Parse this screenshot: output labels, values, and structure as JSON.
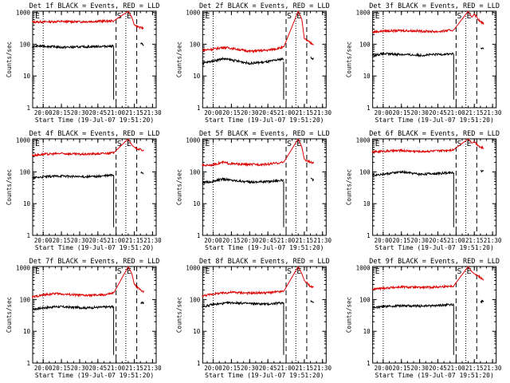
{
  "figure": {
    "colors": {
      "events": "#000000",
      "lld": "#dd0000",
      "axes": "#000000",
      "background": "#ffffff"
    }
  },
  "chart_data": [
    {
      "type": "line",
      "title": "Det 1f BLACK = Events, RED = LLD",
      "xlabel": "Start Time (19-Jul-07 19:51:20)",
      "ylabel": "Counts/sec",
      "xticks": [
        "20:00",
        "20:15",
        "20:30",
        "20:45",
        "21:00",
        "21:15",
        "21:30"
      ],
      "yticks": [
        "1",
        "10",
        "100",
        "1000"
      ],
      "yscale": "log",
      "ylim": [
        1,
        1100
      ],
      "xlim": [
        "19:51:20",
        "21:33:00"
      ],
      "annotations": [
        "E",
        "S",
        "E"
      ],
      "series": [
        {
          "color": "red",
          "x": [
            "19:51",
            "20:00",
            "20:15",
            "20:30",
            "20:45",
            "20:58",
            "21:10",
            "21:13",
            "21:15",
            "21:20",
            "21:23"
          ],
          "y": [
            500,
            510,
            520,
            510,
            530,
            540,
            1100,
            700,
            400,
            330,
            320
          ]
        },
        {
          "color": "black",
          "x": [
            "19:51",
            "20:00",
            "20:15",
            "20:30",
            "20:45",
            "20:58",
            "21:20",
            "21:23"
          ],
          "y": [
            85,
            88,
            80,
            82,
            85,
            88,
            105,
            95
          ]
        }
      ]
    },
    {
      "type": "line",
      "title": "Det 2f BLACK = Events, RED = LLD",
      "xlabel": "Start Time (19-Jul-07 19:51:20)",
      "ylabel": "Counts/sec",
      "xticks": [
        "20:00",
        "20:15",
        "20:30",
        "20:45",
        "21:00",
        "21:15",
        "21:30"
      ],
      "yticks": [
        "1",
        "10",
        "100",
        "1000"
      ],
      "yscale": "log",
      "ylim": [
        1,
        1100
      ],
      "xlim": [
        "19:51:20",
        "21:33:00"
      ],
      "annotations": [
        "E",
        "S",
        "E"
      ],
      "series": [
        {
          "color": "red",
          "x": [
            "19:51",
            "20:00",
            "20:08",
            "20:15",
            "20:30",
            "20:45",
            "20:58",
            "21:10",
            "21:13",
            "21:15",
            "21:20",
            "21:23"
          ],
          "y": [
            65,
            70,
            80,
            75,
            60,
            65,
            80,
            1100,
            600,
            150,
            110,
            100
          ]
        },
        {
          "color": "black",
          "x": [
            "19:51",
            "20:00",
            "20:08",
            "20:15",
            "20:30",
            "20:45",
            "20:58",
            "21:20",
            "21:23"
          ],
          "y": [
            25,
            30,
            35,
            32,
            25,
            28,
            35,
            38,
            35
          ]
        }
      ]
    },
    {
      "type": "line",
      "title": "Det 3f BLACK = Events, RED = LLD",
      "xlabel": "Start Time (19-Jul-07 19:51:20)",
      "ylabel": "Counts/sec",
      "xticks": [
        "20:00",
        "20:15",
        "20:30",
        "20:45",
        "21:00",
        "21:15",
        "21:30"
      ],
      "yticks": [
        "1",
        "10",
        "100",
        "1000"
      ],
      "yscale": "log",
      "ylim": [
        1,
        1100
      ],
      "xlim": [
        "19:51:20",
        "21:33:00"
      ],
      "annotations": [
        "E",
        "S",
        "E"
      ],
      "series": [
        {
          "color": "red",
          "x": [
            "19:51",
            "20:00",
            "20:15",
            "20:30",
            "20:45",
            "20:58",
            "21:10",
            "21:13",
            "21:15",
            "21:20",
            "21:23"
          ],
          "y": [
            240,
            260,
            270,
            260,
            250,
            280,
            1100,
            700,
            900,
            500,
            450
          ]
        },
        {
          "color": "black",
          "x": [
            "19:51",
            "20:00",
            "20:15",
            "20:30",
            "20:45",
            "20:58",
            "21:20",
            "21:23"
          ],
          "y": [
            45,
            50,
            48,
            45,
            48,
            50,
            75,
            70
          ]
        }
      ]
    },
    {
      "type": "line",
      "title": "Det 4f BLACK = Events, RED = LLD",
      "xlabel": "Start Time (19-Jul-07 19:51:20)",
      "ylabel": "Counts/sec",
      "xticks": [
        "20:00",
        "20:15",
        "20:30",
        "20:45",
        "21:00",
        "21:15",
        "21:30"
      ],
      "yticks": [
        "1",
        "10",
        "100",
        "1000"
      ],
      "yscale": "log",
      "ylim": [
        1,
        1100
      ],
      "xlim": [
        "19:51:20",
        "21:33:00"
      ],
      "annotations": [
        "E",
        "S",
        "E"
      ],
      "series": [
        {
          "color": "red",
          "x": [
            "19:51",
            "20:00",
            "20:15",
            "20:30",
            "20:45",
            "20:58",
            "21:10",
            "21:13",
            "21:15",
            "21:20",
            "21:23"
          ],
          "y": [
            330,
            360,
            380,
            360,
            370,
            400,
            1100,
            700,
            600,
            500,
            480
          ]
        },
        {
          "color": "black",
          "x": [
            "19:51",
            "20:00",
            "20:15",
            "20:30",
            "20:45",
            "20:58",
            "21:20",
            "21:23"
          ],
          "y": [
            65,
            70,
            75,
            70,
            72,
            80,
            100,
            90
          ]
        }
      ]
    },
    {
      "type": "line",
      "title": "Det 5f BLACK = Events, RED = LLD",
      "xlabel": "Start Time (19-Jul-07 19:51:20)",
      "ylabel": "Counts/sec",
      "xticks": [
        "20:00",
        "20:15",
        "20:30",
        "20:45",
        "21:00",
        "21:15",
        "21:30"
      ],
      "yticks": [
        "1",
        "10",
        "100",
        "1000"
      ],
      "yscale": "log",
      "ylim": [
        1,
        1100
      ],
      "xlim": [
        "19:51:20",
        "21:33:00"
      ],
      "annotations": [
        "E",
        "S",
        "E"
      ],
      "series": [
        {
          "color": "red",
          "x": [
            "19:51",
            "20:00",
            "20:08",
            "20:15",
            "20:30",
            "20:45",
            "20:58",
            "21:10",
            "21:13",
            "21:15",
            "21:20",
            "21:23"
          ],
          "y": [
            160,
            170,
            200,
            180,
            170,
            175,
            200,
            1100,
            600,
            250,
            200,
            190
          ]
        },
        {
          "color": "black",
          "x": [
            "19:51",
            "20:00",
            "20:08",
            "20:15",
            "20:30",
            "20:45",
            "20:58",
            "21:20",
            "21:23"
          ],
          "y": [
            45,
            50,
            60,
            55,
            48,
            50,
            55,
            60,
            55
          ]
        }
      ]
    },
    {
      "type": "line",
      "title": "Det 6f BLACK = Events, RED = LLD",
      "xlabel": "Start Time (19-Jul-07 19:51:20)",
      "ylabel": "Counts/sec",
      "xticks": [
        "20:00",
        "20:15",
        "20:30",
        "20:45",
        "21:00",
        "21:15",
        "21:30"
      ],
      "yticks": [
        "1",
        "10",
        "100",
        "1000"
      ],
      "yscale": "log",
      "ylim": [
        1,
        1100
      ],
      "xlim": [
        "19:51:20",
        "21:33:00"
      ],
      "annotations": [
        "E",
        "S",
        "E"
      ],
      "series": [
        {
          "color": "red",
          "x": [
            "19:51",
            "20:00",
            "20:15",
            "20:30",
            "20:45",
            "20:58",
            "21:10",
            "21:13",
            "21:15",
            "21:20",
            "21:23"
          ],
          "y": [
            420,
            450,
            470,
            440,
            460,
            500,
            1100,
            800,
            900,
            600,
            560
          ]
        },
        {
          "color": "black",
          "x": [
            "19:51",
            "20:00",
            "20:15",
            "20:30",
            "20:45",
            "20:58",
            "21:20",
            "21:23"
          ],
          "y": [
            80,
            85,
            100,
            85,
            90,
            95,
            110,
            105
          ]
        }
      ]
    },
    {
      "type": "line",
      "title": "Det 7f BLACK = Events, RED = LLD",
      "xlabel": "Start Time (19-Jul-07 19:51:20)",
      "ylabel": "Counts/sec",
      "xticks": [
        "20:00",
        "20:15",
        "20:30",
        "20:45",
        "21:00",
        "21:15",
        "21:30"
      ],
      "yticks": [
        "1",
        "10",
        "100",
        "1000"
      ],
      "yscale": "log",
      "ylim": [
        1,
        1100
      ],
      "xlim": [
        "19:51:20",
        "21:33:00"
      ],
      "annotations": [
        "E",
        "S",
        "E"
      ],
      "series": [
        {
          "color": "red",
          "x": [
            "19:51",
            "20:00",
            "20:10",
            "20:20",
            "20:35",
            "20:50",
            "20:58",
            "21:10",
            "21:13",
            "21:15",
            "21:20",
            "21:23"
          ],
          "y": [
            120,
            140,
            155,
            145,
            135,
            140,
            160,
            1100,
            650,
            300,
            200,
            180
          ]
        },
        {
          "color": "black",
          "x": [
            "19:51",
            "20:00",
            "20:10",
            "20:20",
            "20:35",
            "20:50",
            "20:58",
            "21:20",
            "21:23"
          ],
          "y": [
            50,
            55,
            60,
            58,
            55,
            58,
            60,
            80,
            75
          ]
        }
      ]
    },
    {
      "type": "line",
      "title": "Det 8f BLACK = Events, RED = LLD",
      "xlabel": "Start Time (19-Jul-07 19:51:20)",
      "ylabel": "Counts/sec",
      "xticks": [
        "20:00",
        "20:15",
        "20:30",
        "20:45",
        "21:00",
        "21:15",
        "21:30"
      ],
      "yticks": [
        "1",
        "10",
        "100",
        "1000"
      ],
      "yscale": "log",
      "ylim": [
        1,
        1100
      ],
      "xlim": [
        "19:51:20",
        "21:33:00"
      ],
      "annotations": [
        "E",
        "S",
        "E"
      ],
      "series": [
        {
          "color": "red",
          "x": [
            "19:51",
            "20:00",
            "20:15",
            "20:30",
            "20:45",
            "20:58",
            "21:10",
            "21:13",
            "21:15",
            "21:20",
            "21:23"
          ],
          "y": [
            130,
            150,
            170,
            160,
            165,
            180,
            1100,
            650,
            400,
            260,
            240
          ]
        },
        {
          "color": "black",
          "x": [
            "19:51",
            "20:00",
            "20:15",
            "20:30",
            "20:45",
            "20:58",
            "21:20",
            "21:23"
          ],
          "y": [
            60,
            70,
            80,
            75,
            72,
            80,
            90,
            85
          ]
        }
      ]
    },
    {
      "type": "line",
      "title": "Det 9f BLACK = Events, RED = LLD",
      "xlabel": "Start Time (19-Jul-07 19:51:20)",
      "ylabel": "Counts/sec",
      "xticks": [
        "20:00",
        "20:15",
        "20:30",
        "20:45",
        "21:00",
        "21:15",
        "21:30"
      ],
      "yticks": [
        "1",
        "10",
        "100",
        "1000"
      ],
      "yscale": "log",
      "ylim": [
        1,
        1100
      ],
      "xlim": [
        "19:51:20",
        "21:33:00"
      ],
      "annotations": [
        "E",
        "S",
        "E"
      ],
      "series": [
        {
          "color": "red",
          "x": [
            "19:51",
            "20:00",
            "20:15",
            "20:30",
            "20:45",
            "20:58",
            "21:10",
            "21:13",
            "21:15",
            "21:20",
            "21:23"
          ],
          "y": [
            210,
            230,
            250,
            240,
            250,
            270,
            1100,
            750,
            650,
            500,
            420
          ]
        },
        {
          "color": "black",
          "x": [
            "19:51",
            "20:00",
            "20:15",
            "20:30",
            "20:45",
            "20:58",
            "21:20",
            "21:23"
          ],
          "y": [
            55,
            60,
            65,
            62,
            65,
            70,
            90,
            85
          ]
        }
      ]
    }
  ]
}
